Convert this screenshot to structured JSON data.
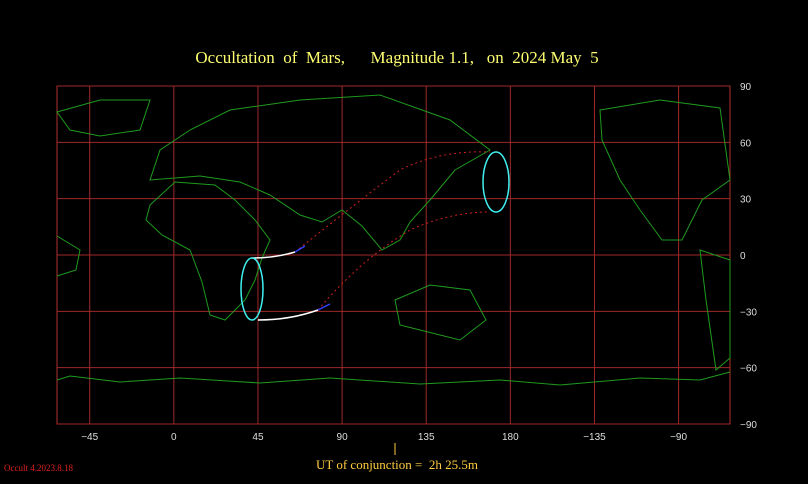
{
  "title": "Occultation  of  Mars,      Magnitude 1.1,   on  2024 May  5",
  "map": {
    "xlim": [
      -62.5,
      297.5
    ],
    "ylim": [
      -90,
      90
    ],
    "xticks": [
      {
        "value": -45,
        "label": "−45"
      },
      0,
      45,
      90,
      135,
      180,
      {
        "value": 225,
        "label": "−135"
      },
      {
        "value": 270,
        "label": "−90"
      }
    ],
    "yticks": [
      90,
      60,
      30,
      0,
      {
        "value": -30,
        "label": "−30"
      },
      {
        "value": -60,
        "label": "−60"
      },
      {
        "value": -90,
        "label": "−90"
      }
    ]
  },
  "conjunction_label": "UT of conjunction =  2h 25.5m",
  "version": "Occult 4.2023.8.18"
}
